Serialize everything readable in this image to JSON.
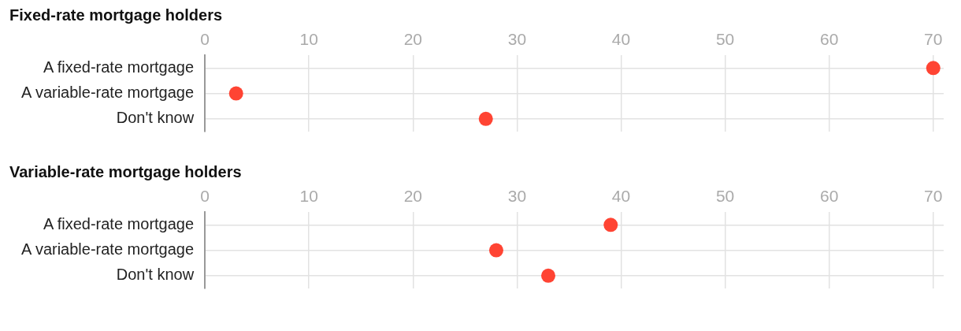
{
  "chart_data": [
    {
      "type": "scatter",
      "title": "Fixed-rate mortgage holders",
      "orientation": "horizontal",
      "categories": [
        "A fixed-rate mortgage",
        "A variable-rate mortgage",
        "Don't know"
      ],
      "values": [
        70,
        3,
        27
      ],
      "color": "#ff4433",
      "xlim": [
        0,
        71
      ],
      "xticks": [
        0,
        10,
        20,
        30,
        40,
        50,
        60,
        70
      ],
      "grid": true,
      "marker": "circle"
    },
    {
      "type": "scatter",
      "title": "Variable-rate mortgage holders",
      "orientation": "horizontal",
      "categories": [
        "A fixed-rate mortgage",
        "A variable-rate mortgage",
        "Don't know"
      ],
      "values": [
        39,
        28,
        33
      ],
      "color": "#ff4433",
      "xlim": [
        0,
        71
      ],
      "xticks": [
        0,
        10,
        20,
        30,
        40,
        50,
        60,
        70
      ],
      "grid": true,
      "marker": "circle"
    }
  ]
}
